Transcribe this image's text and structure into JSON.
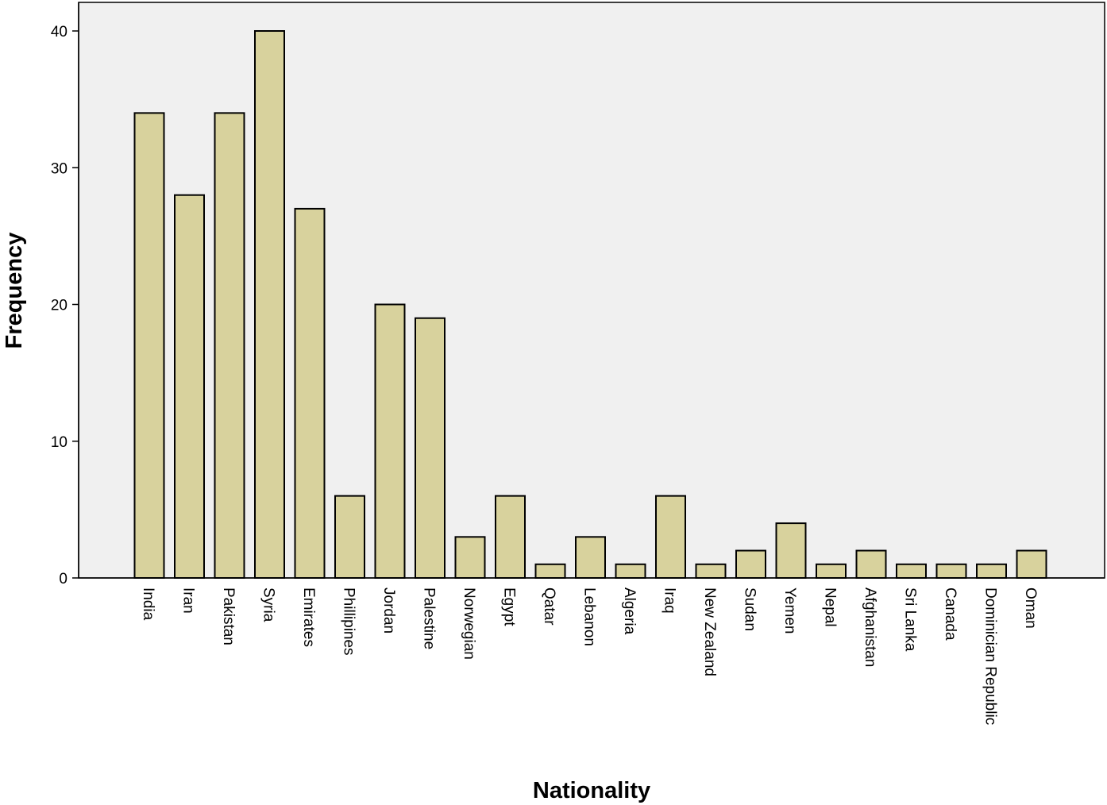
{
  "chart_data": {
    "type": "bar",
    "xlabel": "Nationality",
    "ylabel": "Frequency",
    "ylim": [
      0,
      42
    ],
    "yticks": [
      0,
      10,
      20,
      30,
      40
    ],
    "grid": false,
    "categories": [
      "India",
      "Iran",
      "Pakistan",
      "Syria",
      "Emirates",
      "Phillipines",
      "Jordan",
      "Palestine",
      "Norwegian",
      "Egypt",
      "Qatar",
      "Lebanon",
      "Algeria",
      "Iraq",
      "New Zealand",
      "Sudan",
      "Yemen",
      "Nepal",
      "Afghanistan",
      "Sri Lanka",
      "Canada",
      "Dominician Republic",
      "Oman"
    ],
    "values": [
      34,
      28,
      34,
      40,
      27,
      6,
      20,
      19,
      3,
      6,
      1,
      3,
      1,
      6,
      1,
      2,
      4,
      1,
      2,
      1,
      1,
      1,
      2
    ],
    "colors": {
      "bar_fill": "#d8d29d",
      "bar_stroke": "#000000",
      "plot_background": "#f0f0f0"
    }
  }
}
